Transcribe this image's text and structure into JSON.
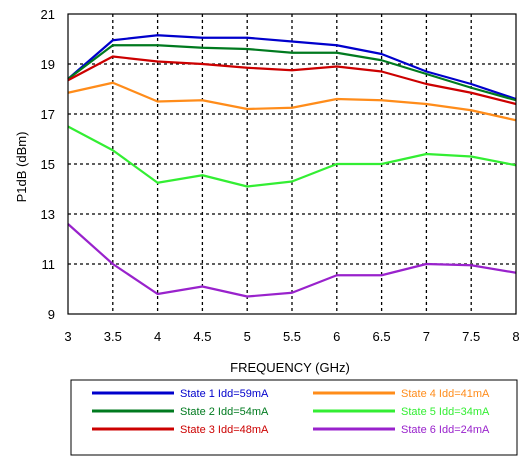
{
  "chart_data": {
    "type": "line",
    "title": "",
    "xlabel": "FREQUENCY (GHz)",
    "ylabel": "P1dB (dBm)",
    "xlim": [
      3,
      8
    ],
    "ylim": [
      9,
      21
    ],
    "x_ticks": [
      "3",
      "3.5",
      "4",
      "4.5",
      "5",
      "5.5",
      "6",
      "6.5",
      "7",
      "7.5",
      "8"
    ],
    "y_ticks": [
      "9",
      "11",
      "13",
      "15",
      "17",
      "19",
      "21"
    ],
    "grid": true,
    "legend_position": "bottom",
    "x": [
      3,
      3.5,
      4,
      4.5,
      5,
      5.5,
      6,
      6.5,
      7,
      7.5,
      8
    ],
    "series": [
      {
        "name": "State 1 Idd=59mA",
        "color": "#0000cc",
        "values": [
          18.4,
          19.95,
          20.15,
          20.05,
          20.05,
          19.9,
          19.75,
          19.4,
          18.7,
          18.2,
          17.6
        ]
      },
      {
        "name": "State 2 Idd=54mA",
        "color": "#007a1f",
        "values": [
          18.4,
          19.75,
          19.75,
          19.65,
          19.6,
          19.45,
          19.45,
          19.15,
          18.6,
          18.05,
          17.55
        ]
      },
      {
        "name": "State 3 Idd=48mA",
        "color": "#cc0000",
        "values": [
          18.35,
          19.3,
          19.1,
          19.0,
          18.85,
          18.75,
          18.9,
          18.7,
          18.2,
          17.85,
          17.4
        ]
      },
      {
        "name": "State 4 Idd=41mA",
        "color": "#ff8c1a",
        "values": [
          17.85,
          18.25,
          17.5,
          17.55,
          17.2,
          17.25,
          17.6,
          17.55,
          17.4,
          17.15,
          16.75
        ]
      },
      {
        "name": "State 5 Idd=34mA",
        "color": "#33ee33",
        "values": [
          16.5,
          15.55,
          14.25,
          14.55,
          14.1,
          14.3,
          15.0,
          15.0,
          15.4,
          15.3,
          14.95
        ]
      },
      {
        "name": "State 6 Idd=24mA",
        "color": "#9922cc",
        "values": [
          12.6,
          11.0,
          9.8,
          10.1,
          9.7,
          9.85,
          10.55,
          10.55,
          11.0,
          10.95,
          10.65
        ]
      }
    ]
  }
}
